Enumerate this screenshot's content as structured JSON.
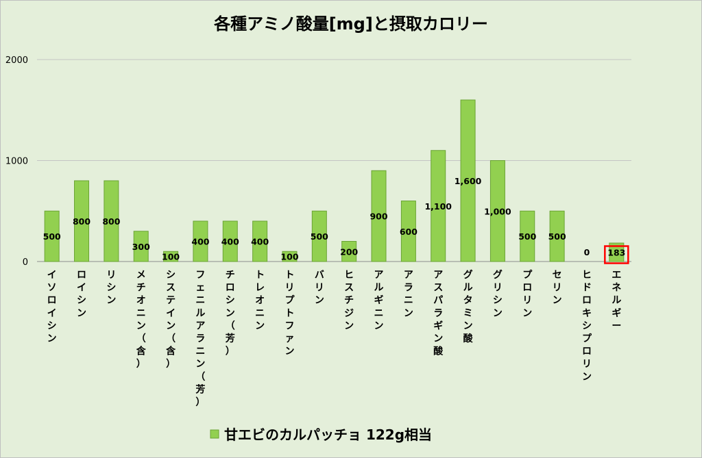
{
  "chart_data": {
    "type": "bar",
    "title": "各種アミノ酸量[mg]と摂取カロリー",
    "xlabel": "",
    "ylabel": "",
    "ylim": [
      0,
      2000
    ],
    "yticks": [
      0,
      1000,
      2000
    ],
    "grid": true,
    "legend_position": "bottom",
    "categories": [
      "イソロイシン",
      "ロイシン",
      "リシン",
      "メチオニン（含）",
      "システイン（含）",
      "フェニルアラニン（芳）",
      "チロシン（芳）",
      "トレオニン",
      "トリプトファン",
      "バリン",
      "ヒスチジン",
      "アルギニン",
      "アラニン",
      "アスパラギン酸",
      "グルタミン酸",
      "グリシン",
      "プロリン",
      "セリン",
      "ヒドロキシプロリン",
      "エネルギー"
    ],
    "series": [
      {
        "name": "甘エビのカルパッチョ 122g相当",
        "color": "#92d050",
        "values": [
          500,
          800,
          800,
          300,
          100,
          400,
          400,
          400,
          100,
          500,
          200,
          900,
          600,
          1100,
          1600,
          1000,
          500,
          500,
          0,
          183
        ],
        "data_labels": [
          "500",
          "800",
          "800",
          "300",
          "100",
          "400",
          "400",
          "400",
          "100",
          "500",
          "200",
          "900",
          "600",
          "1,100",
          "1,600",
          "1,000",
          "500",
          "500",
          "0",
          "183"
        ]
      }
    ],
    "highlight": {
      "category": "エネルギー",
      "color": "#ff0000"
    }
  }
}
